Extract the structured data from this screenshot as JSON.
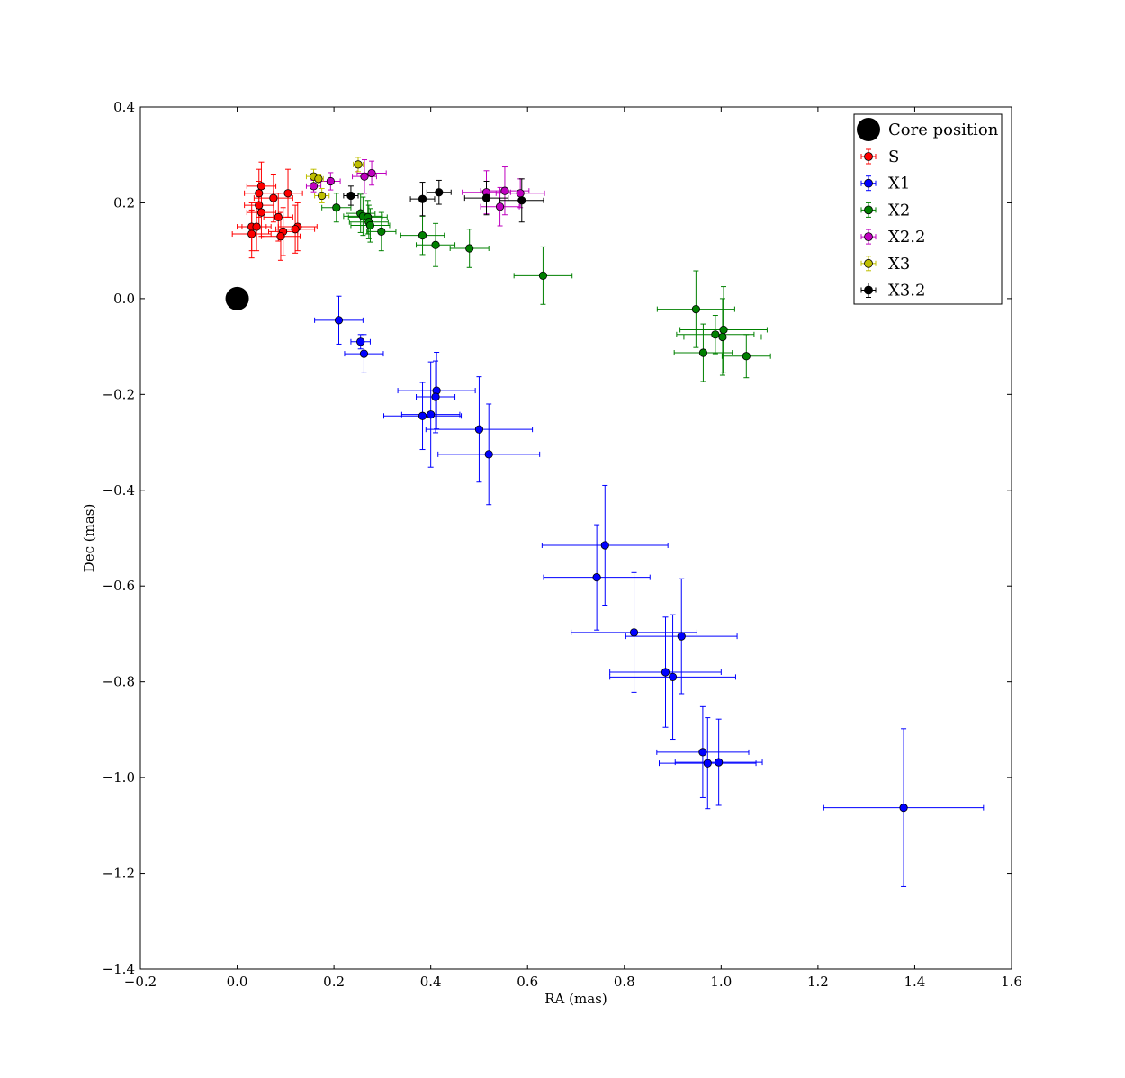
{
  "chart_data": {
    "type": "scatter",
    "xlabel": "RA (mas)",
    "ylabel": "Dec (mas)",
    "xlim": [
      -0.2,
      1.6
    ],
    "ylim": [
      -1.4,
      0.4
    ],
    "xticks": [
      -0.2,
      0.0,
      0.2,
      0.4,
      0.6,
      0.8,
      1.0,
      1.2,
      1.4,
      1.6
    ],
    "yticks": [
      -1.4,
      -1.2,
      -1.0,
      -0.8,
      -0.6,
      -0.4,
      -0.2,
      0.0,
      0.2,
      0.4
    ],
    "xtick_labels": [
      "−0.2",
      "0.0",
      "0.2",
      "0.4",
      "0.6",
      "0.8",
      "1.0",
      "1.2",
      "1.4",
      "1.6"
    ],
    "ytick_labels": [
      "−1.4",
      "−1.2",
      "−1.0",
      "−0.8",
      "−0.6",
      "−0.4",
      "−0.2",
      "0.0",
      "0.2",
      "0.4"
    ],
    "grid": false,
    "legend_position": "top-right",
    "core": {
      "name": "Core position",
      "x": 0.0,
      "y": 0.0,
      "color": "#000000"
    },
    "series": [
      {
        "name": "S",
        "color": "#ff0000",
        "points": [
          [
            0.05,
            0.235,
            0.03,
            0.05
          ],
          [
            0.045,
            0.22,
            0.03,
            0.05
          ],
          [
            0.105,
            0.22,
            0.03,
            0.05
          ],
          [
            0.045,
            0.195,
            0.03,
            0.05
          ],
          [
            0.075,
            0.21,
            0.04,
            0.05
          ],
          [
            0.05,
            0.18,
            0.03,
            0.05
          ],
          [
            0.085,
            0.17,
            0.03,
            0.05
          ],
          [
            0.03,
            0.15,
            0.03,
            0.05
          ],
          [
            0.04,
            0.15,
            0.03,
            0.05
          ],
          [
            0.125,
            0.15,
            0.04,
            0.05
          ],
          [
            0.12,
            0.145,
            0.04,
            0.05
          ],
          [
            0.095,
            0.14,
            0.03,
            0.05
          ],
          [
            0.03,
            0.135,
            0.04,
            0.05
          ],
          [
            0.09,
            0.13,
            0.04,
            0.05
          ]
        ]
      },
      {
        "name": "X1",
        "color": "#0000ff",
        "points": [
          [
            0.21,
            -0.045,
            0.05,
            0.05
          ],
          [
            0.255,
            -0.09,
            0.02,
            0.015
          ],
          [
            0.262,
            -0.115,
            0.04,
            0.04
          ],
          [
            0.412,
            -0.192,
            0.08,
            0.08
          ],
          [
            0.41,
            -0.205,
            0.04,
            0.075
          ],
          [
            0.383,
            -0.245,
            0.08,
            0.07
          ],
          [
            0.4,
            -0.242,
            0.06,
            0.11
          ],
          [
            0.5,
            -0.273,
            0.11,
            0.11
          ],
          [
            0.52,
            -0.325,
            0.105,
            0.105
          ],
          [
            0.76,
            -0.515,
            0.13,
            0.125
          ],
          [
            0.743,
            -0.582,
            0.11,
            0.11
          ],
          [
            0.82,
            -0.697,
            0.13,
            0.125
          ],
          [
            0.918,
            -0.705,
            0.115,
            0.12
          ],
          [
            0.885,
            -0.78,
            0.115,
            0.115
          ],
          [
            0.9,
            -0.79,
            0.13,
            0.13
          ],
          [
            0.962,
            -0.947,
            0.095,
            0.095
          ],
          [
            0.972,
            -0.97,
            0.1,
            0.095
          ],
          [
            0.995,
            -0.968,
            0.09,
            0.09
          ],
          [
            1.377,
            -1.063,
            0.165,
            0.165
          ]
        ]
      },
      {
        "name": "X2",
        "color": "#008000",
        "points": [
          [
            0.205,
            0.19,
            0.03,
            0.03
          ],
          [
            0.255,
            0.178,
            0.03,
            0.04
          ],
          [
            0.26,
            0.172,
            0.04,
            0.04
          ],
          [
            0.27,
            0.17,
            0.04,
            0.035
          ],
          [
            0.272,
            0.16,
            0.04,
            0.035
          ],
          [
            0.275,
            0.153,
            0.04,
            0.035
          ],
          [
            0.298,
            0.14,
            0.03,
            0.04
          ],
          [
            0.383,
            0.132,
            0.045,
            0.04
          ],
          [
            0.41,
            0.112,
            0.04,
            0.045
          ],
          [
            0.48,
            0.105,
            0.04,
            0.04
          ],
          [
            0.632,
            0.048,
            0.06,
            0.06
          ],
          [
            0.948,
            -0.022,
            0.08,
            0.08
          ],
          [
            0.988,
            -0.075,
            0.08,
            0.04
          ],
          [
            1.005,
            -0.065,
            0.09,
            0.09
          ],
          [
            1.003,
            -0.08,
            0.08,
            0.08
          ],
          [
            0.963,
            -0.113,
            0.06,
            0.06
          ],
          [
            1.052,
            -0.12,
            0.05,
            0.045
          ]
        ]
      },
      {
        "name": "X2.2",
        "color": "#bf00bf",
        "points": [
          [
            0.158,
            0.235,
            0.015,
            0.012
          ],
          [
            0.193,
            0.245,
            0.02,
            0.018
          ],
          [
            0.263,
            0.255,
            0.025,
            0.035
          ],
          [
            0.278,
            0.262,
            0.03,
            0.025
          ],
          [
            0.515,
            0.222,
            0.05,
            0.045
          ],
          [
            0.553,
            0.225,
            0.05,
            0.05
          ],
          [
            0.585,
            0.22,
            0.05,
            0.03
          ],
          [
            0.543,
            0.192,
            0.04,
            0.04
          ]
        ]
      },
      {
        "name": "X3",
        "color": "#bfbf00",
        "points": [
          [
            0.158,
            0.255,
            0.015,
            0.015
          ],
          [
            0.168,
            0.25,
            0.01,
            0.01
          ],
          [
            0.175,
            0.215,
            0.015,
            0.015
          ],
          [
            0.25,
            0.28,
            0.01,
            0.015
          ]
        ]
      },
      {
        "name": "X3.2",
        "color": "#000000",
        "points": [
          [
            0.235,
            0.215,
            0.015,
            0.02
          ],
          [
            0.383,
            0.208,
            0.025,
            0.035
          ],
          [
            0.417,
            0.222,
            0.025,
            0.025
          ],
          [
            0.515,
            0.21,
            0.045,
            0.035
          ],
          [
            0.588,
            0.205,
            0.045,
            0.045
          ]
        ]
      }
    ]
  }
}
